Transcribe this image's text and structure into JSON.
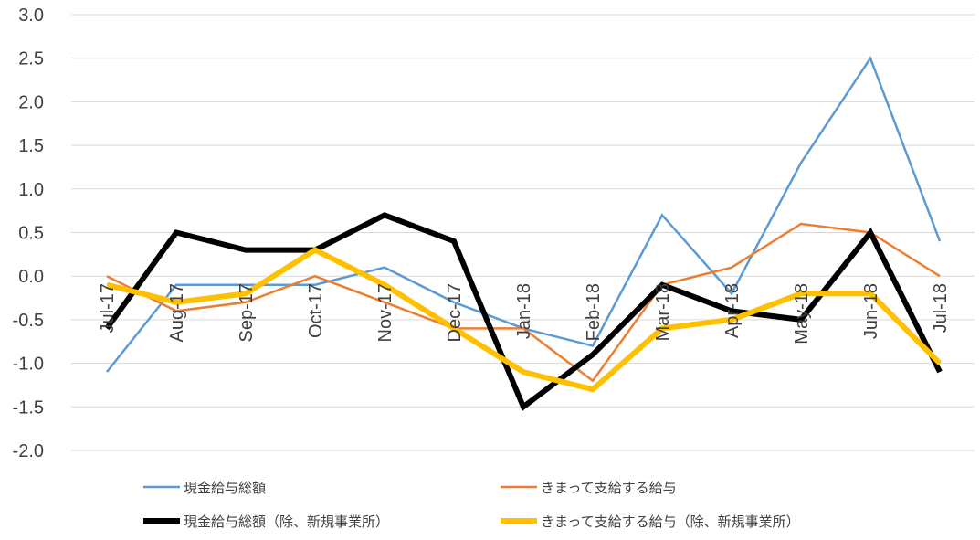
{
  "chart_data": {
    "type": "line",
    "categories": [
      "Jul-17",
      "Aug-17",
      "Sep-17",
      "Oct-17",
      "Nov-17",
      "Dec-17",
      "Jan-18",
      "Feb-18",
      "Mar-18",
      "Apr-18",
      "May-18",
      "Jun-18",
      "Jul-18"
    ],
    "ylim": [
      -2.0,
      3.0
    ],
    "yticks": [
      "3.0",
      "2.5",
      "2.0",
      "1.5",
      "1.0",
      "0.5",
      "0.0",
      "-0.5",
      "-1.0",
      "-1.5",
      "-2.0"
    ],
    "grid": true,
    "legend_position": "bottom",
    "series": [
      {
        "name": "現金給与総額",
        "color": "#5b9bd5",
        "width": "thin",
        "values": [
          -1.1,
          -0.1,
          -0.1,
          -0.1,
          0.1,
          -0.3,
          -0.6,
          -0.8,
          0.7,
          -0.2,
          1.3,
          2.5,
          0.4
        ]
      },
      {
        "name": "きまって支給する給与",
        "color": "#ed7d31",
        "width": "thin",
        "values": [
          0.0,
          -0.4,
          -0.3,
          0.0,
          -0.3,
          -0.6,
          -0.6,
          -1.2,
          -0.1,
          0.1,
          0.6,
          0.5,
          0.0
        ]
      },
      {
        "name": "現金給与総額（除、新規事業所）",
        "color": "#000000",
        "width": "thick",
        "values": [
          -0.6,
          0.5,
          0.3,
          0.3,
          0.7,
          0.4,
          -1.5,
          -0.9,
          -0.1,
          -0.4,
          -0.5,
          0.5,
          -1.1
        ]
      },
      {
        "name": "きまって支給する給与（除、新規事業所）",
        "color": "#ffc000",
        "width": "thick",
        "values": [
          -0.1,
          -0.3,
          -0.2,
          0.3,
          -0.1,
          -0.6,
          -1.1,
          -1.3,
          -0.6,
          -0.5,
          -0.2,
          -0.2,
          -1.0
        ]
      }
    ]
  }
}
